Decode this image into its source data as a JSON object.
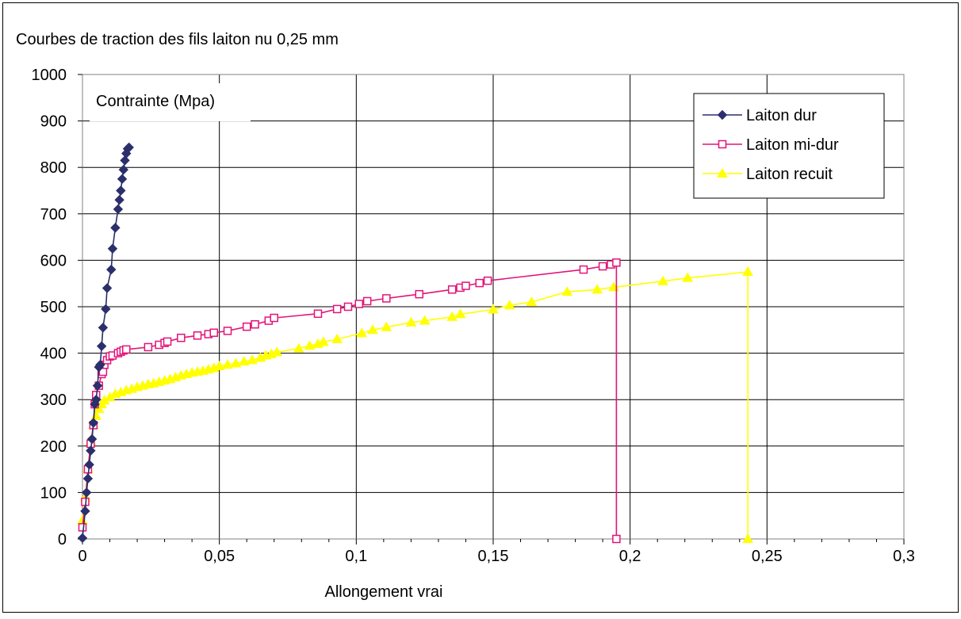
{
  "chart_data": {
    "type": "line",
    "title": "Courbes de traction des fils laiton nu 0,25 mm",
    "xlabel": "Allongement vrai",
    "ylabel": "Contrainte (Mpa)",
    "xlim": [
      0,
      0.3
    ],
    "ylim": [
      0,
      1000
    ],
    "xticks": [
      0,
      0.05,
      0.1,
      0.15,
      0.2,
      0.25,
      0.3
    ],
    "xtick_labels": [
      "0",
      "0,05",
      "0,1",
      "0,15",
      "0,2",
      "0,25",
      "0,3"
    ],
    "yticks": [
      0,
      100,
      200,
      300,
      400,
      500,
      600,
      700,
      800,
      900,
      1000
    ],
    "ytick_labels": [
      "0",
      "100",
      "200",
      "300",
      "400",
      "500",
      "600",
      "700",
      "800",
      "900",
      "1000"
    ],
    "grid": true,
    "legend_position": "top-right",
    "series": [
      {
        "name": "Laiton dur",
        "color": "#2b2f6b",
        "marker": "diamond-filled",
        "points": [
          [
            0,
            2
          ],
          [
            0.001,
            60
          ],
          [
            0.0015,
            100
          ],
          [
            0.002,
            130
          ],
          [
            0.0025,
            160
          ],
          [
            0.003,
            190
          ],
          [
            0.0035,
            215
          ],
          [
            0.004,
            250
          ],
          [
            0.0045,
            290
          ],
          [
            0.005,
            300
          ],
          [
            0.0055,
            330
          ],
          [
            0.006,
            370
          ],
          [
            0.0065,
            375
          ],
          [
            0.007,
            415
          ],
          [
            0.0075,
            455
          ],
          [
            0.0085,
            495
          ],
          [
            0.009,
            540
          ],
          [
            0.0105,
            580
          ],
          [
            0.011,
            625
          ],
          [
            0.012,
            670
          ],
          [
            0.013,
            710
          ],
          [
            0.0135,
            730
          ],
          [
            0.014,
            750
          ],
          [
            0.0145,
            775
          ],
          [
            0.015,
            795
          ],
          [
            0.0155,
            815
          ],
          [
            0.016,
            830
          ],
          [
            0.0165,
            840
          ],
          [
            0.017,
            843
          ]
        ]
      },
      {
        "name": "Laiton mi-dur",
        "color": "#e2147a",
        "marker": "square-open",
        "points": [
          [
            0,
            25
          ],
          [
            0.001,
            80
          ],
          [
            0.002,
            150
          ],
          [
            0.003,
            205
          ],
          [
            0.004,
            245
          ],
          [
            0.0045,
            290
          ],
          [
            0.005,
            310
          ],
          [
            0.006,
            330
          ],
          [
            0.007,
            355
          ],
          [
            0.0075,
            360
          ],
          [
            0.008,
            375
          ],
          [
            0.009,
            385
          ],
          [
            0.01,
            393
          ],
          [
            0.011,
            395
          ],
          [
            0.013,
            400
          ],
          [
            0.014,
            403
          ],
          [
            0.015,
            406
          ],
          [
            0.016,
            408
          ],
          [
            0.024,
            413
          ],
          [
            0.028,
            418
          ],
          [
            0.03,
            422
          ],
          [
            0.031,
            425
          ],
          [
            0.036,
            433
          ],
          [
            0.042,
            438
          ],
          [
            0.046,
            441
          ],
          [
            0.048,
            444
          ],
          [
            0.053,
            448
          ],
          [
            0.06,
            457
          ],
          [
            0.063,
            462
          ],
          [
            0.068,
            470
          ],
          [
            0.07,
            476
          ],
          [
            0.086,
            485
          ],
          [
            0.093,
            495
          ],
          [
            0.097,
            500
          ],
          [
            0.101,
            506
          ],
          [
            0.104,
            512
          ],
          [
            0.111,
            518
          ],
          [
            0.123,
            527
          ],
          [
            0.135,
            537
          ],
          [
            0.138,
            541
          ],
          [
            0.14,
            545
          ],
          [
            0.145,
            551
          ],
          [
            0.148,
            556
          ],
          [
            0.183,
            580
          ],
          [
            0.19,
            587
          ],
          [
            0.193,
            591
          ],
          [
            0.195,
            595
          ],
          [
            0.195,
            0
          ]
        ]
      },
      {
        "name": "Laiton recuit",
        "color": "#ffff00",
        "marker": "triangle-filled",
        "points": [
          [
            0,
            40
          ],
          [
            0.001,
            90
          ],
          [
            0.002,
            150
          ],
          [
            0.003,
            210
          ],
          [
            0.004,
            245
          ],
          [
            0.005,
            265
          ],
          [
            0.006,
            280
          ],
          [
            0.007,
            290
          ],
          [
            0.008,
            298
          ],
          [
            0.01,
            305
          ],
          [
            0.012,
            312
          ],
          [
            0.014,
            316
          ],
          [
            0.016,
            320
          ],
          [
            0.018,
            323
          ],
          [
            0.02,
            327
          ],
          [
            0.022,
            330
          ],
          [
            0.024,
            333
          ],
          [
            0.026,
            335
          ],
          [
            0.028,
            338
          ],
          [
            0.03,
            341
          ],
          [
            0.032,
            344
          ],
          [
            0.034,
            348
          ],
          [
            0.036,
            352
          ],
          [
            0.038,
            355
          ],
          [
            0.04,
            358
          ],
          [
            0.042,
            360
          ],
          [
            0.044,
            362
          ],
          [
            0.046,
            365
          ],
          [
            0.048,
            368
          ],
          [
            0.05,
            372
          ],
          [
            0.053,
            375
          ],
          [
            0.056,
            378
          ],
          [
            0.059,
            382
          ],
          [
            0.062,
            385
          ],
          [
            0.065,
            390
          ],
          [
            0.067,
            395
          ],
          [
            0.069,
            398
          ],
          [
            0.071,
            402
          ],
          [
            0.079,
            410
          ],
          [
            0.083,
            416
          ],
          [
            0.086,
            420
          ],
          [
            0.088,
            424
          ],
          [
            0.093,
            430
          ],
          [
            0.102,
            443
          ],
          [
            0.106,
            450
          ],
          [
            0.111,
            456
          ],
          [
            0.12,
            466
          ],
          [
            0.125,
            470
          ],
          [
            0.135,
            478
          ],
          [
            0.138,
            484
          ],
          [
            0.15,
            494
          ],
          [
            0.156,
            503
          ],
          [
            0.164,
            510
          ],
          [
            0.177,
            532
          ],
          [
            0.188,
            537
          ],
          [
            0.194,
            542
          ],
          [
            0.212,
            555
          ],
          [
            0.221,
            562
          ],
          [
            0.243,
            575
          ],
          [
            0.243,
            0
          ]
        ]
      }
    ]
  }
}
